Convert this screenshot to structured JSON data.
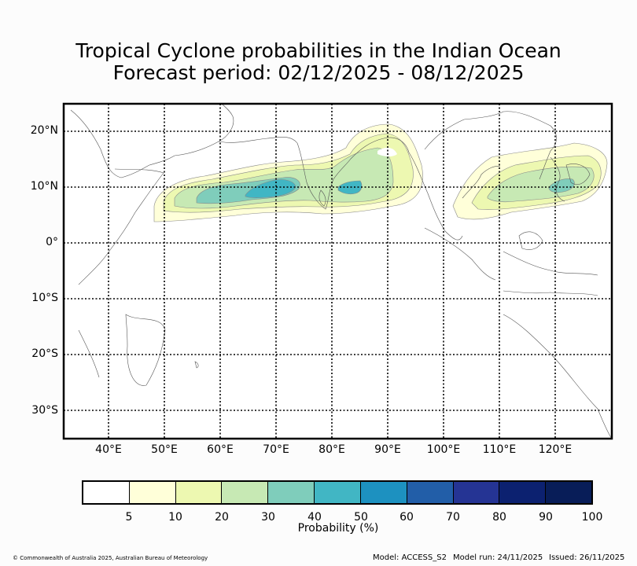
{
  "title": {
    "line1": "Tropical Cyclone probabilities in the Indian Ocean",
    "line2": "Forecast period: 02/12/2025 - 08/12/2025"
  },
  "map": {
    "lat_labels": [
      "20°N",
      "10°N",
      "0°",
      "10°S",
      "20°S",
      "30°S"
    ],
    "lon_labels": [
      "40°E",
      "50°E",
      "60°E",
      "70°E",
      "80°E",
      "90°E",
      "100°E",
      "110°E",
      "120°E"
    ],
    "lat_range": [
      -35,
      25
    ],
    "lon_range": [
      32,
      130
    ]
  },
  "colorbar": {
    "label": "Probability (%)",
    "ticks": [
      "5",
      "10",
      "20",
      "30",
      "40",
      "50",
      "60",
      "70",
      "80",
      "90",
      "100"
    ],
    "colors": [
      "#ffffff",
      "#ffffd9",
      "#edf8b1",
      "#c7e9b4",
      "#7fcdbb",
      "#41b6c4",
      "#1d91c0",
      "#225ea8",
      "#253494",
      "#0c2170",
      "#081d58"
    ]
  },
  "footer": {
    "copyright": "© Commonwealth of Australia 2025, Australian Bureau of Meteorology",
    "model": "Model: ACCESS_S2",
    "model_run": "Model run: 24/11/2025",
    "issued": "Issued: 26/11/2025"
  }
}
